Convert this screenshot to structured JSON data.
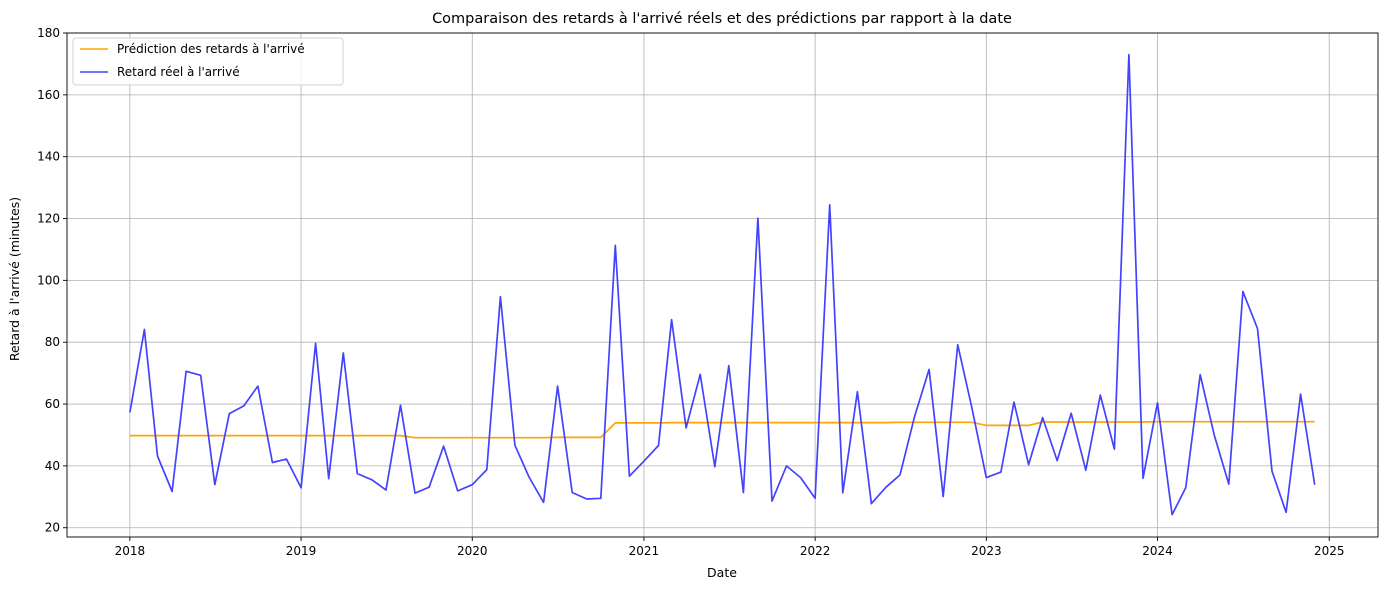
{
  "chart_data": {
    "type": "line",
    "title": "Comparaison des retards à l'arrivé réels et des prédictions par rapport à la date",
    "xlabel": "Date",
    "ylabel": "Retard à l'arrivé (minutes)",
    "xlim": [
      "2017-08-20",
      "2025-04-15"
    ],
    "ylim": [
      17,
      180
    ],
    "grid": true,
    "legend_position": "top-left",
    "x_ticks": [
      "2018-01-01",
      "2019-01-01",
      "2020-01-01",
      "2021-01-01",
      "2022-01-01",
      "2023-01-01",
      "2024-01-01",
      "2025-01-01"
    ],
    "x_tick_labels": [
      "2018",
      "2019",
      "2020",
      "2021",
      "2022",
      "2023",
      "2024",
      "2025"
    ],
    "y_ticks": [
      20,
      40,
      60,
      80,
      100,
      120,
      140,
      160,
      180
    ],
    "x": [
      "2018-01-01",
      "2018-02-01",
      "2018-03-01",
      "2018-04-01",
      "2018-05-01",
      "2018-06-01",
      "2018-07-01",
      "2018-08-01",
      "2018-09-01",
      "2018-10-01",
      "2018-11-01",
      "2018-12-01",
      "2019-01-01",
      "2019-02-01",
      "2019-03-01",
      "2019-04-01",
      "2019-05-01",
      "2019-06-01",
      "2019-07-01",
      "2019-08-01",
      "2019-09-01",
      "2019-10-01",
      "2019-11-01",
      "2019-12-01",
      "2020-01-01",
      "2020-02-01",
      "2020-03-01",
      "2020-04-01",
      "2020-05-01",
      "2020-06-01",
      "2020-07-01",
      "2020-08-01",
      "2020-09-01",
      "2020-10-01",
      "2020-11-01",
      "2020-12-01",
      "2021-01-01",
      "2021-02-01",
      "2021-03-01",
      "2021-04-01",
      "2021-05-01",
      "2021-06-01",
      "2021-07-01",
      "2021-08-01",
      "2021-09-01",
      "2021-10-01",
      "2021-11-01",
      "2021-12-01",
      "2022-01-01",
      "2022-02-01",
      "2022-03-01",
      "2022-04-01",
      "2022-05-01",
      "2022-06-01",
      "2022-07-01",
      "2022-08-01",
      "2022-09-01",
      "2022-10-01",
      "2022-11-01",
      "2022-12-01",
      "2023-01-01",
      "2023-02-01",
      "2023-03-01",
      "2023-04-01",
      "2023-05-01",
      "2023-06-01",
      "2023-07-01",
      "2023-08-01",
      "2023-09-01",
      "2023-10-01",
      "2023-11-01",
      "2023-12-01",
      "2024-01-01",
      "2024-02-01",
      "2024-03-01",
      "2024-04-01",
      "2024-05-01",
      "2024-06-01",
      "2024-07-01",
      "2024-08-01",
      "2024-09-01",
      "2024-10-01",
      "2024-11-01",
      "2024-12-01"
    ],
    "series": [
      {
        "name": "Prédiction des retards à l'arrivé",
        "color": "#ffa500",
        "values": [
          49.8,
          49.8,
          49.8,
          49.8,
          49.8,
          49.8,
          49.8,
          49.8,
          49.8,
          49.8,
          49.8,
          49.8,
          49.8,
          49.8,
          49.8,
          49.8,
          49.8,
          49.8,
          49.8,
          49.8,
          49.1,
          49.1,
          49.1,
          49.1,
          49.1,
          49.1,
          49.1,
          49.1,
          49.1,
          49.1,
          49.2,
          49.2,
          49.2,
          49.2,
          53.9,
          53.9,
          53.9,
          53.9,
          54.0,
          54.0,
          54.0,
          54.0,
          54.0,
          54.0,
          54.0,
          54.0,
          54.0,
          54.0,
          54.0,
          54.0,
          54.0,
          54.0,
          54.0,
          54.0,
          54.1,
          54.1,
          54.1,
          54.1,
          54.1,
          54.1,
          53.1,
          53.1,
          53.1,
          53.1,
          54.2,
          54.2,
          54.2,
          54.2,
          54.2,
          54.2,
          54.2,
          54.2,
          54.3,
          54.3,
          54.3,
          54.3,
          54.3,
          54.3,
          54.3,
          54.3,
          54.3,
          54.3,
          54.3,
          54.3
        ]
      },
      {
        "name": "Retard réel à l'arrivé",
        "color": "#4343ff",
        "values": [
          57.3,
          84.1,
          43.2,
          31.7,
          70.6,
          69.3,
          33.9,
          56.9,
          59.4,
          65.8,
          41.1,
          42.2,
          32.9,
          79.6,
          35.9,
          76.5,
          37.5,
          35.5,
          32.2,
          59.6,
          31.2,
          33.1,
          46.4,
          31.9,
          33.9,
          38.8,
          94.7,
          46.7,
          36.4,
          28.2,
          65.8,
          31.4,
          29.3,
          29.5,
          111.3,
          36.7,
          41.5,
          46.6,
          87.3,
          52.3,
          69.6,
          39.7,
          72.4,
          31.4,
          120.1,
          28.6,
          40.0,
          36.2,
          29.5,
          124.4,
          31.3,
          64.0,
          27.8,
          33.1,
          37.1,
          56.0,
          71.2,
          30.1,
          79.2,
          58.9,
          36.2,
          38.0,
          60.6,
          40.4,
          55.6,
          41.7,
          57.0,
          38.6,
          62.9,
          45.4,
          173.0,
          36.0,
          60.4,
          24.2,
          32.9,
          69.5,
          49.9,
          34.1,
          96.4,
          84.4,
          38.3,
          25.0,
          63.2,
          33.9
        ]
      }
    ]
  }
}
